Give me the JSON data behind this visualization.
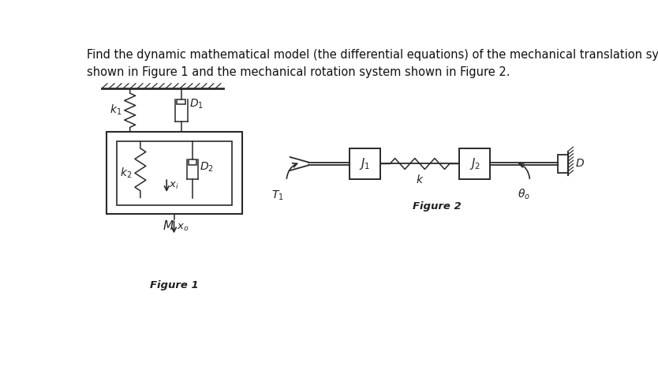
{
  "title_text": "Find the dynamic mathematical model (the differential equations) of the mechanical translation system\nshown in Figure 1 and the mechanical rotation system shown in Figure 2.",
  "title_fontsize": 10.5,
  "fig1_label": "Figure 1",
  "fig2_label": "Figure 2",
  "bg_color": "#ffffff",
  "line_color": "#2a2a2a",
  "fig_width": 8.34,
  "fig_height": 4.65,
  "dpi": 100
}
